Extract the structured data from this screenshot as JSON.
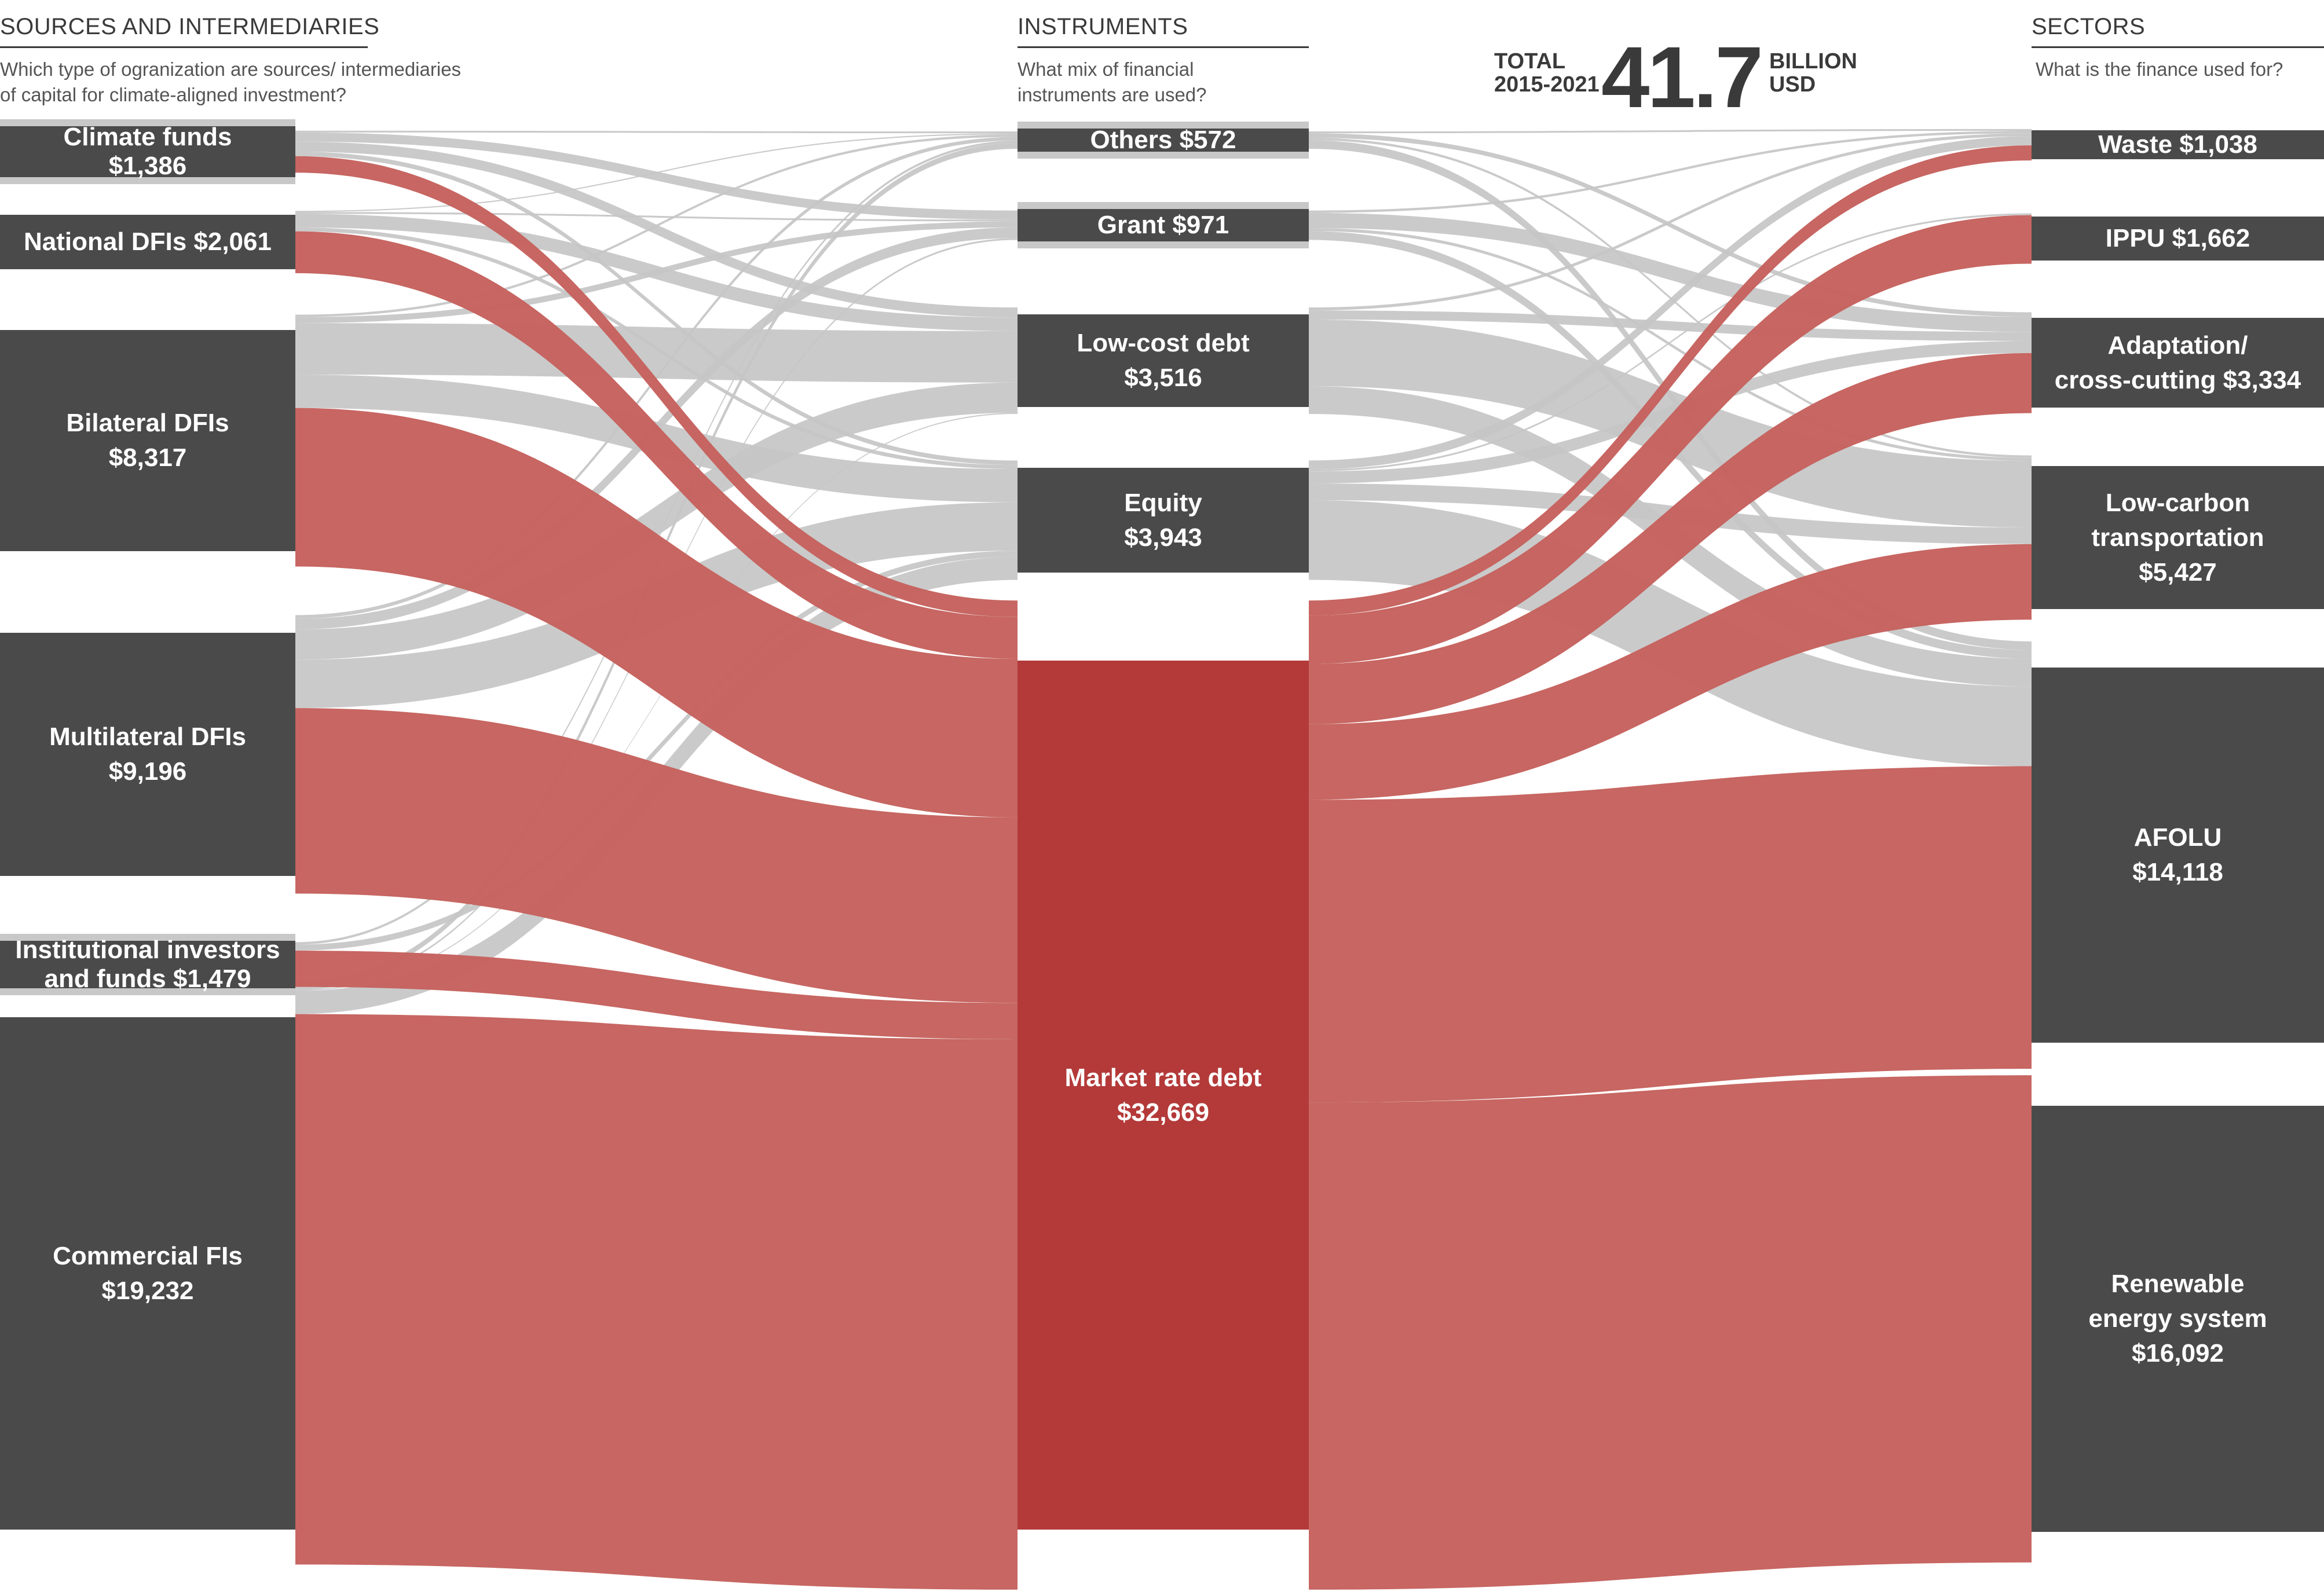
{
  "header": {
    "sources_title": "SOURCES AND INTERMEDIARIES",
    "sources_question_line1": "Which type of ogranization are sources/ intermediaries",
    "sources_question_line2": "of capital for climate-aligned investment?",
    "instruments_title": "INSTRUMENTS",
    "instruments_question_line1": "What mix of financial",
    "instruments_question_line2": "instruments are used?",
    "sectors_title": "SECTORS",
    "sectors_question": "What is the finance used for?",
    "total_label_line1": "TOTAL",
    "total_label_line2": "2015-2021",
    "total_value": "41.7",
    "total_unit_line1": "BILLION",
    "total_unit_line2": "USD"
  },
  "colors": {
    "node": "#4a4a4a",
    "market_node": "#b33a39",
    "flow_market": "#c5615d",
    "flow_other": "#c6c6c6",
    "text": "#3a3a3a"
  },
  "sources": [
    {
      "id": "climate_funds",
      "lines": [
        "Climate funds",
        "$1,386"
      ],
      "value": 1386
    },
    {
      "id": "national_dfis",
      "lines": [
        "National DFIs $2,061"
      ],
      "value": 2061
    },
    {
      "id": "bilateral_dfis",
      "lines": [
        "Bilateral DFIs",
        "$8,317"
      ],
      "value": 8317
    },
    {
      "id": "multilateral_dfis",
      "lines": [
        "Multilateral DFIs",
        "$9,196"
      ],
      "value": 9196
    },
    {
      "id": "institutional",
      "lines": [
        "Institutional investors",
        "and funds $1,479"
      ],
      "value": 1479
    },
    {
      "id": "commercial_fis",
      "lines": [
        "Commercial FIs",
        "$19,232"
      ],
      "value": 19232
    }
  ],
  "instruments": [
    {
      "id": "others",
      "lines": [
        "Others $572"
      ],
      "value": 572
    },
    {
      "id": "grant",
      "lines": [
        "Grant $971"
      ],
      "value": 971
    },
    {
      "id": "low_cost_debt",
      "lines": [
        "Low-cost debt",
        "$3,516"
      ],
      "value": 3516
    },
    {
      "id": "equity",
      "lines": [
        "Equity",
        "$3,943"
      ],
      "value": 3943
    },
    {
      "id": "market_rate_debt",
      "lines": [
        "Market rate debt",
        "$32,669"
      ],
      "value": 32669
    }
  ],
  "sectors": [
    {
      "id": "waste",
      "lines": [
        "Waste $1,038"
      ],
      "value": 1038
    },
    {
      "id": "ippu",
      "lines": [
        "IPPU $1,662"
      ],
      "value": 1662
    },
    {
      "id": "adaptation",
      "lines": [
        "Adaptation/",
        "cross-cutting $3,334"
      ],
      "value": 3334
    },
    {
      "id": "low_carbon_transport",
      "lines": [
        "Low-carbon",
        "transportation",
        "$5,427"
      ],
      "value": 5427
    },
    {
      "id": "afolu",
      "lines": [
        "AFOLU",
        "$14,118"
      ],
      "value": 14118
    },
    {
      "id": "renewable",
      "lines": [
        "Renewable",
        "energy system",
        "$16,092"
      ],
      "value": 16092
    }
  ],
  "flows_left": [
    {
      "source": "climate_funds",
      "target": "others",
      "value": 60
    },
    {
      "source": "climate_funds",
      "target": "grant",
      "value": 300
    },
    {
      "source": "climate_funds",
      "target": "low_cost_debt",
      "value": 330
    },
    {
      "source": "climate_funds",
      "target": "equity",
      "value": 150
    },
    {
      "source": "climate_funds",
      "target": "market_rate_debt",
      "value": 546
    },
    {
      "source": "national_dfis",
      "target": "others",
      "value": 40
    },
    {
      "source": "national_dfis",
      "target": "grant",
      "value": 60
    },
    {
      "source": "national_dfis",
      "target": "low_cost_debt",
      "value": 450
    },
    {
      "source": "national_dfis",
      "target": "equity",
      "value": 130
    },
    {
      "source": "national_dfis",
      "target": "market_rate_debt",
      "value": 1381
    },
    {
      "source": "bilateral_dfis",
      "target": "others",
      "value": 80
    },
    {
      "source": "bilateral_dfis",
      "target": "grant",
      "value": 200
    },
    {
      "source": "bilateral_dfis",
      "target": "low_cost_debt",
      "value": 1700
    },
    {
      "source": "bilateral_dfis",
      "target": "equity",
      "value": 1100
    },
    {
      "source": "bilateral_dfis",
      "target": "market_rate_debt",
      "value": 5237
    },
    {
      "source": "multilateral_dfis",
      "target": "others",
      "value": 120
    },
    {
      "source": "multilateral_dfis",
      "target": "grant",
      "value": 350
    },
    {
      "source": "multilateral_dfis",
      "target": "low_cost_debt",
      "value": 1000
    },
    {
      "source": "multilateral_dfis",
      "target": "equity",
      "value": 1600
    },
    {
      "source": "multilateral_dfis",
      "target": "market_rate_debt",
      "value": 6126
    },
    {
      "source": "institutional",
      "target": "others",
      "value": 80
    },
    {
      "source": "institutional",
      "target": "equity",
      "value": 200
    },
    {
      "source": "institutional",
      "target": "market_rate_debt",
      "value": 1199
    },
    {
      "source": "commercial_fis",
      "target": "others",
      "value": 192
    },
    {
      "source": "commercial_fis",
      "target": "grant",
      "value": 61
    },
    {
      "source": "commercial_fis",
      "target": "low_cost_debt",
      "value": 36
    },
    {
      "source": "commercial_fis",
      "target": "equity",
      "value": 763
    },
    {
      "source": "commercial_fis",
      "target": "market_rate_debt",
      "value": 18180
    }
  ],
  "flows_right": [
    {
      "source": "others",
      "target": "waste",
      "value": 60
    },
    {
      "source": "others",
      "target": "adaptation",
      "value": 150
    },
    {
      "source": "others",
      "target": "low_carbon_transport",
      "value": 80
    },
    {
      "source": "others",
      "target": "afolu",
      "value": 282
    },
    {
      "source": "grant",
      "target": "waste",
      "value": 80
    },
    {
      "source": "grant",
      "target": "adaptation",
      "value": 500
    },
    {
      "source": "grant",
      "target": "low_carbon_transport",
      "value": 100
    },
    {
      "source": "grant",
      "target": "afolu",
      "value": 291
    },
    {
      "source": "low_cost_debt",
      "target": "waste",
      "value": 100
    },
    {
      "source": "low_cost_debt",
      "target": "adaptation",
      "value": 300
    },
    {
      "source": "low_cost_debt",
      "target": "low_carbon_transport",
      "value": 2200
    },
    {
      "source": "low_cost_debt",
      "target": "afolu",
      "value": 916
    },
    {
      "source": "equity",
      "target": "waste",
      "value": 300
    },
    {
      "source": "equity",
      "target": "ippu",
      "value": 60
    },
    {
      "source": "equity",
      "target": "adaptation",
      "value": 400
    },
    {
      "source": "equity",
      "target": "low_carbon_transport",
      "value": 550
    },
    {
      "source": "equity",
      "target": "afolu",
      "value": 2633
    },
    {
      "source": "market_rate_debt",
      "target": "waste",
      "value": 498
    },
    {
      "source": "market_rate_debt",
      "target": "ippu",
      "value": 1602
    },
    {
      "source": "market_rate_debt",
      "target": "adaptation",
      "value": 1984
    },
    {
      "source": "market_rate_debt",
      "target": "low_carbon_transport",
      "value": 2497
    },
    {
      "source": "market_rate_debt",
      "target": "afolu",
      "value": 9996
    },
    {
      "source": "market_rate_debt",
      "target": "renewable",
      "value": 16092
    }
  ]
}
